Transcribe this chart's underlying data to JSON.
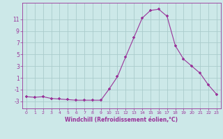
{
  "x": [
    0,
    1,
    2,
    3,
    4,
    5,
    6,
    7,
    8,
    9,
    10,
    11,
    12,
    13,
    14,
    15,
    16,
    17,
    18,
    19,
    20,
    21,
    22,
    23
  ],
  "y": [
    -2.2,
    -2.3,
    -2.2,
    -2.5,
    -2.6,
    -2.7,
    -2.8,
    -2.8,
    -2.8,
    -2.8,
    -0.9,
    1.2,
    4.6,
    7.9,
    11.2,
    12.5,
    12.7,
    11.5,
    6.5,
    4.2,
    3.0,
    1.8,
    -0.2,
    -1.8
  ],
  "line_color": "#993399",
  "marker": "+",
  "marker_color": "#993399",
  "bg_color": "#cce8e8",
  "grid_color": "#aacccc",
  "xlabel": "Windchill (Refroidissement éolien,°C)",
  "xlabel_color": "#993399",
  "tick_color": "#993399",
  "ylabel_ticks": [
    -3,
    -1,
    1,
    3,
    5,
    7,
    9,
    11
  ],
  "xlim": [
    -0.5,
    23.5
  ],
  "ylim": [
    -4.2,
    13.8
  ],
  "figsize": [
    3.2,
    2.0
  ],
  "dpi": 100
}
